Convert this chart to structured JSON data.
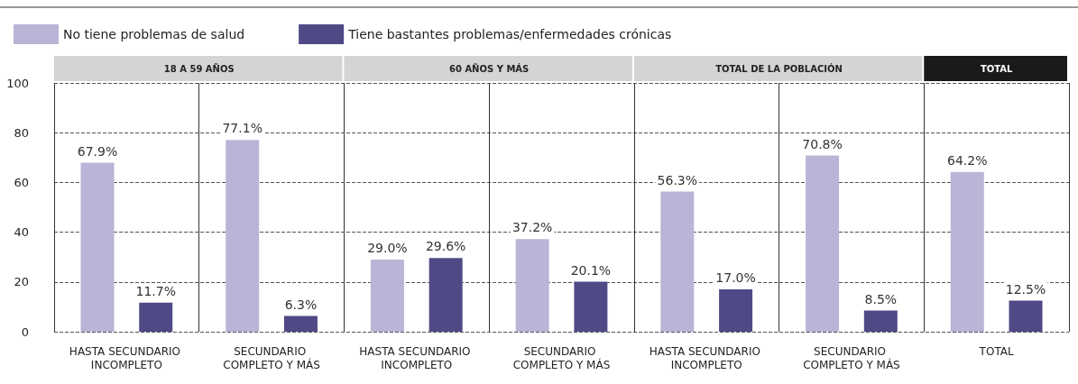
{
  "chart_data": {
    "type": "bar",
    "categories": [
      "HASTA SECUNDARIO INCOMPLETO",
      "SECUNDARIO COMPLETO Y MÁS",
      "HASTA SECUNDARIO INCOMPLETO",
      "SECUNDARIO COMPLETO Y MÁS",
      "HASTA SECUNDARIO INCOMPLETO",
      "SECUNDARIO COMPLETO Y MÁS",
      "TOTAL"
    ],
    "series": [
      {
        "name": "No tiene problemas de salud",
        "color": "#b9b5d7",
        "values": [
          67.9,
          77.1,
          29.0,
          37.2,
          56.3,
          70.8,
          64.2
        ],
        "value_labels": [
          "67.9%",
          "77.1%",
          "29.0%",
          "37.2%",
          "56.3%",
          "70.8%",
          "64.2%"
        ]
      },
      {
        "name": "Tiene bastantes problemas/enfermedades crónicas",
        "color": "#4f4a86",
        "values": [
          11.7,
          6.3,
          29.6,
          20.1,
          17.0,
          8.5,
          12.5
        ],
        "value_labels": [
          "11.7%",
          "6.3%",
          "29.6%",
          "20.1%",
          "17.0%",
          "8.5%",
          "12.5%"
        ]
      }
    ],
    "annotations": [
      "18 A 59 AÑOS",
      "60 AÑOS Y MÁS",
      "TOTAL DE LA POBLACIÓN",
      "TOTAL"
    ],
    "ylim": [
      0,
      100
    ],
    "yticks": [
      0,
      20,
      40,
      60,
      80,
      100
    ],
    "grid": "y",
    "legend": "top left"
  }
}
